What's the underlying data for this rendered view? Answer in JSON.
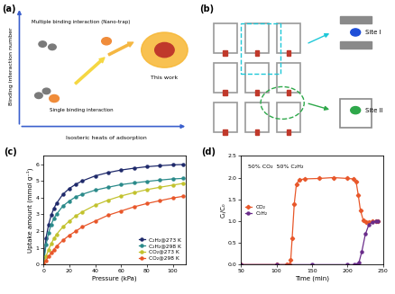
{
  "panels": {
    "a": {
      "label": "(a)",
      "y_axis": "Binding interaction number",
      "x_axis": "Isosteric heats of adsorption",
      "multiple": "Multiple binding interaction (Nano-trap)",
      "single": "Single binding interaction",
      "this_work": "This work"
    },
    "b": {
      "label": "(b)",
      "sites": [
        "Site I",
        "Site II"
      ]
    }
  },
  "chart_data": [
    {
      "type": "line",
      "label": "(c)",
      "xlabel": "Pressure (kPa)",
      "ylabel": "Uptake amount (mmol g⁻¹)",
      "x": [
        0,
        2,
        4,
        6,
        8,
        10,
        15,
        20,
        25,
        30,
        40,
        50,
        60,
        70,
        80,
        90,
        100,
        108
      ],
      "xlim": [
        0,
        110
      ],
      "xticks": [
        0,
        20,
        40,
        60,
        80,
        100
      ],
      "ylim": [
        0,
        6.5
      ],
      "yticks": [
        0,
        1,
        2,
        3,
        4,
        5,
        6
      ],
      "legend": "lower right",
      "marker": "o",
      "line_style": "solid",
      "series": [
        {
          "name": "C₂H₂@273 K",
          "color": "#1f2a6b",
          "values": [
            0,
            1.6,
            2.4,
            2.95,
            3.35,
            3.65,
            4.2,
            4.55,
            4.8,
            5.0,
            5.3,
            5.5,
            5.65,
            5.76,
            5.85,
            5.91,
            5.96,
            5.98
          ]
        },
        {
          "name": "C₂H₂@298 K",
          "color": "#2a8a8a",
          "values": [
            0,
            1.2,
            1.9,
            2.4,
            2.75,
            3.0,
            3.5,
            3.8,
            4.05,
            4.2,
            4.45,
            4.62,
            4.78,
            4.88,
            4.97,
            5.05,
            5.12,
            5.15
          ]
        },
        {
          "name": "CO₂@273 K",
          "color": "#c2c22e",
          "values": [
            0,
            0.5,
            0.9,
            1.25,
            1.55,
            1.8,
            2.25,
            2.6,
            2.9,
            3.15,
            3.55,
            3.85,
            4.1,
            4.3,
            4.48,
            4.62,
            4.75,
            4.85
          ]
        },
        {
          "name": "CO₂@298 K",
          "color": "#e8572a",
          "values": [
            0,
            0.25,
            0.5,
            0.7,
            0.9,
            1.08,
            1.45,
            1.75,
            2.0,
            2.25,
            2.6,
            2.95,
            3.2,
            3.45,
            3.65,
            3.82,
            3.98,
            4.08
          ]
        }
      ]
    },
    {
      "type": "line",
      "label": "(d)",
      "xlabel": "Time (min)",
      "ylabel": "Cₜ/C₀",
      "annotations": [
        "50% CO₂  50% C₂H₂"
      ],
      "xlim": [
        50,
        250
      ],
      "xticks": [
        50,
        100,
        150,
        200,
        250
      ],
      "ylim": [
        0,
        2.5
      ],
      "yticks": [
        {
          "value": 0,
          "label": "0.0"
        },
        0.5,
        {
          "value": 1,
          "label": "1.0"
        },
        1.5,
        {
          "value": 2,
          "label": "2.0"
        },
        2.5
      ],
      "legend": "center left",
      "line_style": "solid",
      "series": [
        {
          "name": "CO₂",
          "color": "#e8572a",
          "marker": "diamond",
          "x": [
            50,
            100,
            115,
            118,
            120,
            122,
            125,
            128,
            132,
            140,
            160,
            180,
            200,
            208,
            212,
            215,
            218,
            222,
            226,
            230,
            235,
            240,
            242
          ],
          "values": [
            0,
            0,
            0,
            0,
            0.1,
            0.6,
            1.4,
            1.85,
            1.95,
            1.97,
            1.98,
            2.0,
            1.98,
            1.97,
            1.9,
            1.6,
            1.25,
            1.02,
            0.98,
            0.98,
            1.0,
            1.0,
            1.0
          ]
        },
        {
          "name": "C₂H₂",
          "color": "#6a2c8a",
          "marker": "circle",
          "x": [
            50,
            100,
            150,
            200,
            210,
            213,
            216,
            220,
            225,
            230,
            235,
            240,
            242
          ],
          "values": [
            0,
            0,
            0,
            0,
            0,
            0,
            0.05,
            0.3,
            0.7,
            0.92,
            0.98,
            1.0,
            1.0
          ]
        }
      ]
    }
  ]
}
